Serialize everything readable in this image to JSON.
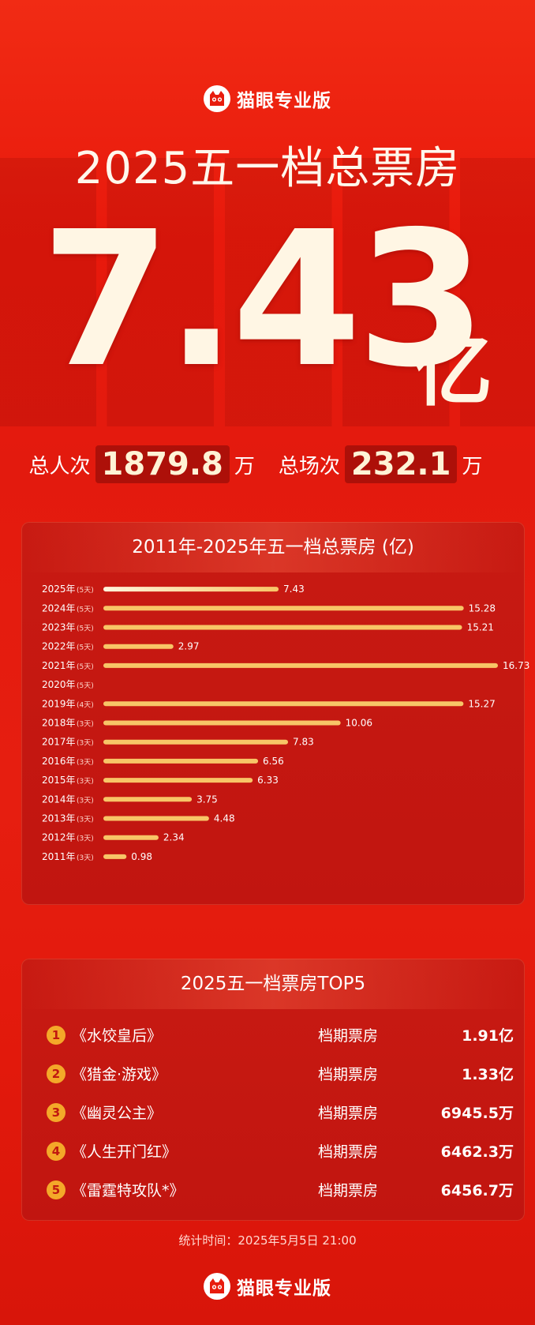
{
  "brand": {
    "name": "猫眼专业版",
    "logo_icon": "cat-eye-logo-icon"
  },
  "title": "2025五一档总票房",
  "headline": {
    "value": "7.43",
    "unit": "亿"
  },
  "stats": [
    {
      "label": "总人次",
      "value": "1879.8",
      "unit": "万"
    },
    {
      "label": "总场次",
      "value": "232.1",
      "unit": "万"
    }
  ],
  "chart_data": {
    "type": "bar",
    "orientation": "horizontal",
    "title": "2011年-2025年五一档总票房 (亿)",
    "categories": [
      "2025年",
      "2024年",
      "2023年",
      "2022年",
      "2021年",
      "2020年",
      "2019年",
      "2018年",
      "2017年",
      "2016年",
      "2015年",
      "2014年",
      "2013年",
      "2012年",
      "2011年"
    ],
    "days": [
      "(5天)",
      "(5天)",
      "(5天)",
      "(5天)",
      "(5天)",
      "(5天)",
      "(4天)",
      "(3天)",
      "(3天)",
      "(3天)",
      "(3天)",
      "(3天)",
      "(3天)",
      "(3天)",
      "(3天)"
    ],
    "values": [
      7.43,
      15.28,
      15.21,
      2.97,
      16.73,
      null,
      15.27,
      10.06,
      7.83,
      6.56,
      6.33,
      3.75,
      4.48,
      2.34,
      0.98
    ],
    "value_labels": [
      "7.43",
      "15.28",
      "15.21",
      "2.97",
      "16.73",
      "",
      "15.27",
      "10.06",
      "7.83",
      "6.56",
      "6.33",
      "3.75",
      "4.48",
      "2.34",
      "0.98"
    ],
    "xlim": [
      0,
      16.73
    ],
    "bar_color": "#f8c567",
    "highlight_color": "#fff4dc"
  },
  "top5": {
    "title": "2025五一档票房TOP5",
    "column_label": "档期票房",
    "items": [
      {
        "rank": "1",
        "name": "《水饺皇后》",
        "value": "1.91亿"
      },
      {
        "rank": "2",
        "name": "《猎金·游戏》",
        "value": "1.33亿"
      },
      {
        "rank": "3",
        "name": "《幽灵公主》",
        "value": "6945.5万"
      },
      {
        "rank": "4",
        "name": "《人生开门红》",
        "value": "6462.3万"
      },
      {
        "rank": "5",
        "name": "《雷霆特攻队*》",
        "value": "6456.7万"
      }
    ]
  },
  "footer": {
    "stat_time": "统计时间：2025年5月5日 21:00"
  }
}
